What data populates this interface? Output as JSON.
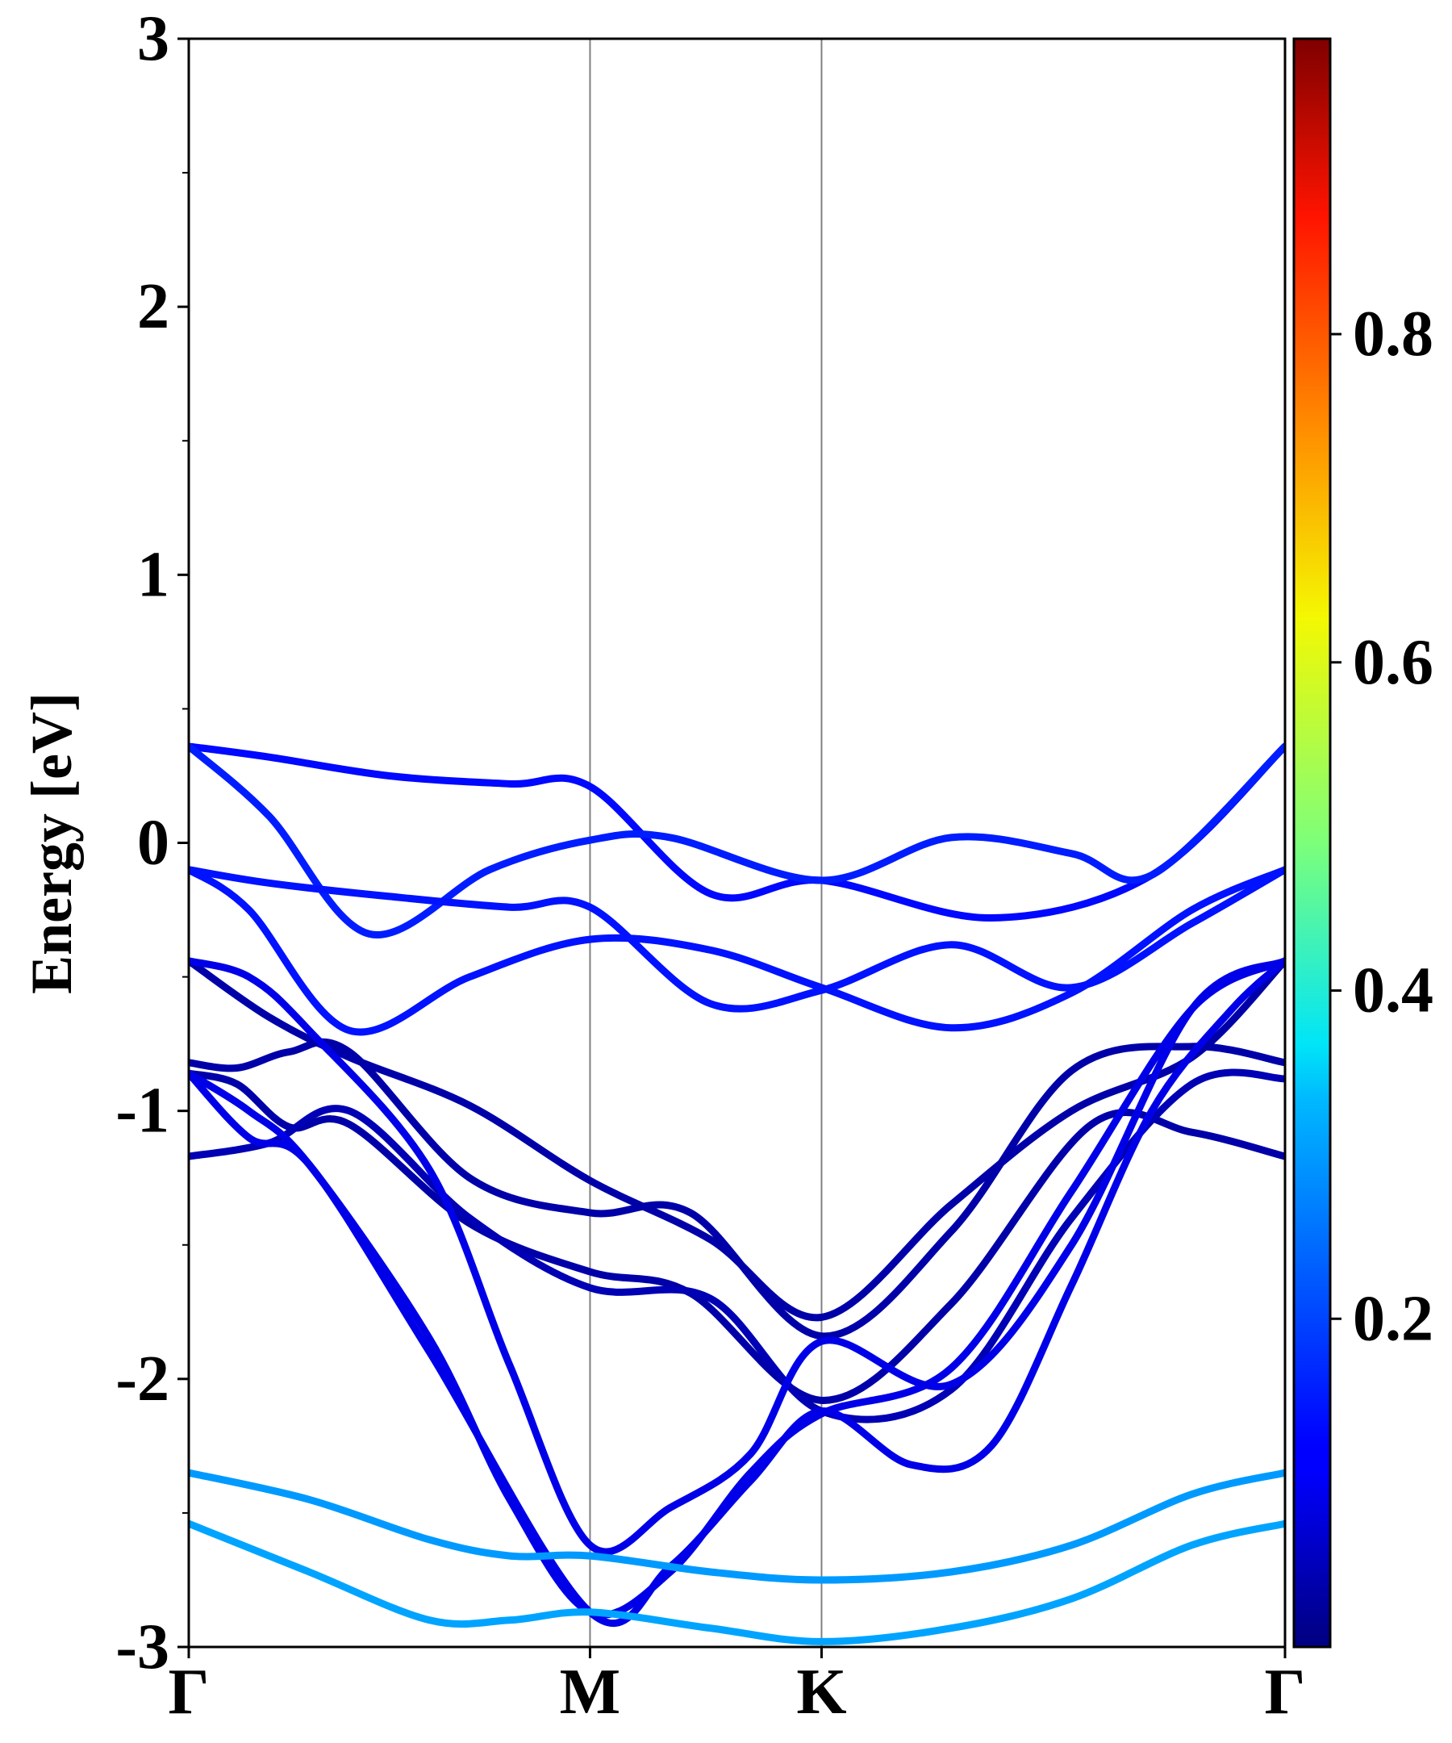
{
  "chart_data": {
    "type": "line",
    "title": "",
    "ylabel": "Energy [eV]",
    "xlabel": "",
    "ylim": [
      -3,
      3
    ],
    "yticks": [
      {
        "value": 3,
        "label": "3"
      },
      {
        "value": 2,
        "label": "2"
      },
      {
        "value": 1,
        "label": "1"
      },
      {
        "value": 0,
        "label": "0"
      },
      {
        "value": -1,
        "label": "-1"
      },
      {
        "value": -2,
        "label": "-2"
      },
      {
        "value": -3,
        "label": "-3"
      }
    ],
    "kpath": [
      {
        "label": "Γ",
        "k": 0.0
      },
      {
        "label": "M",
        "k": 1.0
      },
      {
        "label": "K",
        "k": 1.577
      },
      {
        "label": "Γ",
        "k": 2.732
      }
    ],
    "grid": false,
    "colorbar": {
      "colormap": "jet",
      "min": 0.0,
      "max": 0.98,
      "ticks": [
        {
          "value": 0.2,
          "label": "0.2"
        },
        {
          "value": 0.4,
          "label": "0.4"
        },
        {
          "value": 0.6,
          "label": "0.6"
        },
        {
          "value": 0.8,
          "label": "0.8"
        }
      ]
    },
    "bands": [
      {
        "color_value": 0.13,
        "k": [
          0,
          0.2,
          0.5,
          0.8,
          1.0,
          1.3,
          1.577,
          2.0,
          2.4,
          2.732
        ],
        "E": [
          0.36,
          0.32,
          0.25,
          0.22,
          0.21,
          -0.19,
          -0.14,
          -0.28,
          -0.12,
          0.36
        ]
      },
      {
        "color_value": 0.15,
        "k": [
          0,
          0.2,
          0.45,
          0.75,
          1.0,
          1.2,
          1.577,
          1.9,
          2.2,
          2.4,
          2.732
        ],
        "E": [
          0.36,
          0.1,
          -0.34,
          -0.1,
          0.01,
          0.02,
          -0.14,
          0.02,
          -0.04,
          -0.12,
          0.36
        ]
      },
      {
        "color_value": 0.14,
        "k": [
          0,
          0.2,
          0.5,
          0.8,
          1.0,
          1.3,
          1.577,
          1.9,
          2.2,
          2.5,
          2.732
        ],
        "E": [
          -0.1,
          -0.15,
          -0.2,
          -0.24,
          -0.24,
          -0.6,
          -0.55,
          -0.38,
          -0.54,
          -0.3,
          -0.1
        ]
      },
      {
        "color_value": 0.14,
        "k": [
          0,
          0.15,
          0.4,
          0.7,
          1.0,
          1.3,
          1.577,
          1.9,
          2.2,
          2.5,
          2.732
        ],
        "E": [
          -0.1,
          -0.25,
          -0.7,
          -0.5,
          -0.36,
          -0.4,
          -0.54,
          -0.69,
          -0.56,
          -0.25,
          -0.1
        ]
      },
      {
        "color_value": 0.04,
        "k": [
          0,
          0.2,
          0.4,
          0.7,
          1.0,
          1.3,
          1.577,
          1.9,
          2.2,
          2.5,
          2.732
        ],
        "E": [
          -0.44,
          -0.65,
          -0.8,
          -0.98,
          -1.26,
          -1.48,
          -1.77,
          -1.35,
          -1.0,
          -0.8,
          -0.44
        ]
      },
      {
        "color_value": 0.04,
        "k": [
          0,
          0.12,
          0.25,
          0.4,
          0.7,
          1.0,
          1.25,
          1.577,
          1.9,
          2.2,
          2.5,
          2.732
        ],
        "E": [
          -0.82,
          -0.84,
          -0.78,
          -0.78,
          -1.25,
          -1.38,
          -1.38,
          -1.84,
          -1.45,
          -0.85,
          -0.76,
          -0.82
        ]
      },
      {
        "color_value": 0.04,
        "k": [
          0,
          0.12,
          0.25,
          0.4,
          0.7,
          1.0,
          1.25,
          1.577,
          1.9,
          2.25,
          2.5,
          2.732
        ],
        "E": [
          -0.86,
          -0.9,
          -1.06,
          -1.05,
          -1.42,
          -1.6,
          -1.68,
          -2.08,
          -1.72,
          -1.05,
          -1.08,
          -1.17
        ]
      },
      {
        "color_value": 0.05,
        "k": [
          0,
          0.2,
          0.4,
          0.7,
          1.0,
          1.3,
          1.577,
          1.9,
          2.2,
          2.5,
          2.732
        ],
        "E": [
          -1.17,
          -1.12,
          -1.0,
          -1.4,
          -1.66,
          -1.7,
          -2.12,
          -2.04,
          -1.4,
          -0.9,
          -0.88
        ]
      },
      {
        "color_value": 0.1,
        "k": [
          0,
          0.15,
          0.3,
          0.6,
          0.8,
          1.0,
          1.2,
          1.4,
          1.577,
          1.9,
          2.2,
          2.5,
          2.732
        ],
        "E": [
          -0.44,
          -0.5,
          -0.7,
          -1.22,
          -1.95,
          -2.62,
          -2.48,
          -2.28,
          -1.86,
          -2.02,
          -1.5,
          -0.62,
          -0.44
        ]
      },
      {
        "color_value": 0.1,
        "k": [
          0,
          0.15,
          0.3,
          0.6,
          0.8,
          1.0,
          1.2,
          1.4,
          1.577,
          1.9,
          2.2,
          2.5,
          2.732
        ],
        "E": [
          -0.86,
          -1.0,
          -1.2,
          -1.85,
          -2.45,
          -2.87,
          -2.72,
          -2.35,
          -2.13,
          -1.96,
          -1.3,
          -0.62,
          -0.44
        ]
      },
      {
        "color_value": 0.1,
        "k": [
          0,
          0.15,
          0.3,
          0.6,
          1.0,
          1.2,
          1.4,
          1.577,
          1.8,
          2.0,
          2.2,
          2.4,
          2.6,
          2.732
        ],
        "E": [
          -0.86,
          -1.1,
          -1.2,
          -1.9,
          -2.87,
          -2.7,
          -2.38,
          -2.12,
          -2.32,
          -2.25,
          -1.65,
          -1.0,
          -0.62,
          -0.44
        ]
      },
      {
        "color_value": 0.27,
        "k": [
          0,
          0.3,
          0.6,
          0.8,
          1.0,
          1.3,
          1.577,
          1.9,
          2.2,
          2.5,
          2.732
        ],
        "E": [
          -2.35,
          -2.45,
          -2.6,
          -2.66,
          -2.66,
          -2.72,
          -2.75,
          -2.72,
          -2.62,
          -2.43,
          -2.35
        ]
      },
      {
        "color_value": 0.28,
        "k": [
          0,
          0.3,
          0.6,
          0.8,
          1.0,
          1.3,
          1.577,
          1.9,
          2.2,
          2.5,
          2.732
        ],
        "E": [
          -2.54,
          -2.72,
          -2.9,
          -2.9,
          -2.87,
          -2.93,
          -2.98,
          -2.93,
          -2.82,
          -2.62,
          -2.54
        ]
      }
    ]
  }
}
